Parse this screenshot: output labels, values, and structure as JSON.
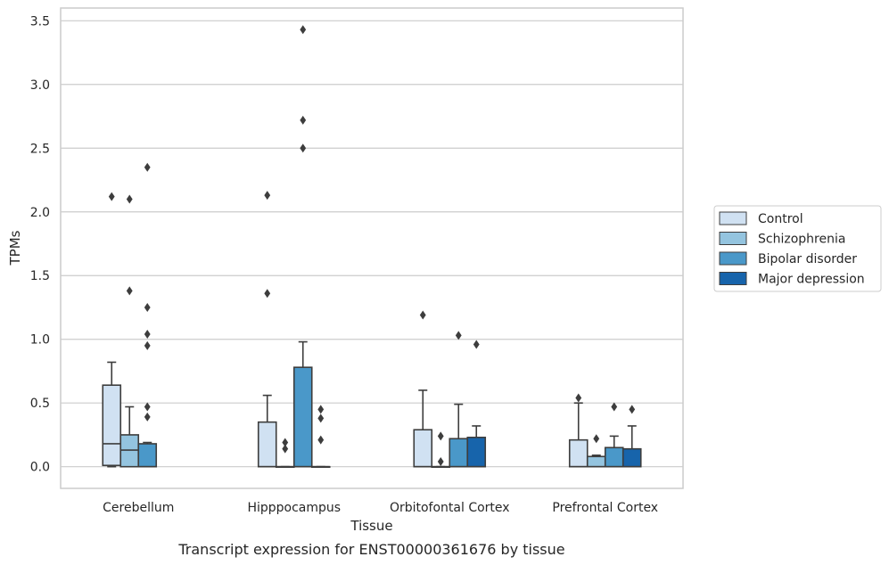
{
  "chart_data": {
    "type": "box",
    "caption": "Transcript expression for ENST00000361676 by tissue",
    "xlabel": "Tissue",
    "ylabel": "TPMs",
    "ylim": [
      -0.17,
      3.6
    ],
    "yticks": [
      0.0,
      0.5,
      1.0,
      1.5,
      2.0,
      2.5,
      3.0,
      3.5
    ],
    "ytick_labels": [
      "0.0",
      "0.5",
      "1.0",
      "1.5",
      "2.0",
      "2.5",
      "3.0",
      "3.5"
    ],
    "grid": "horizontal",
    "legend_position": "right",
    "categories": [
      "Cerebellum",
      "Hipppocampus",
      "Orbitofontal Cortex",
      "Prefrontal Cortex"
    ],
    "series": [
      {
        "name": "Control",
        "color": "#d0e1f2",
        "boxes": [
          {
            "q1": 0.01,
            "median": 0.18,
            "q3": 0.64,
            "whisker_low": 0.0,
            "whisker_high": 0.82,
            "outliers": [
              2.12
            ]
          },
          {
            "q1": 0.0,
            "median": 0.0,
            "q3": 0.35,
            "whisker_low": 0.0,
            "whisker_high": 0.56,
            "outliers": [
              2.13,
              1.36
            ]
          },
          {
            "q1": 0.0,
            "median": 0.0,
            "q3": 0.29,
            "whisker_low": 0.0,
            "whisker_high": 0.6,
            "outliers": [
              1.19
            ]
          },
          {
            "q1": 0.0,
            "median": 0.0,
            "q3": 0.21,
            "whisker_low": 0.0,
            "whisker_high": 0.5,
            "outliers": [
              0.54
            ]
          }
        ]
      },
      {
        "name": "Schizophrenia",
        "color": "#94c4df",
        "boxes": [
          {
            "q1": 0.0,
            "median": 0.13,
            "q3": 0.25,
            "whisker_low": 0.0,
            "whisker_high": 0.47,
            "outliers": [
              2.1,
              1.38
            ]
          },
          {
            "q1": 0.0,
            "median": 0.0,
            "q3": 0.0,
            "whisker_low": 0.0,
            "whisker_high": 0.0,
            "outliers": [
              0.19,
              0.14
            ]
          },
          {
            "q1": 0.0,
            "median": 0.0,
            "q3": 0.0,
            "whisker_low": 0.0,
            "whisker_high": 0.0,
            "outliers": [
              0.24,
              0.04
            ]
          },
          {
            "q1": 0.0,
            "median": 0.0,
            "q3": 0.08,
            "whisker_low": 0.0,
            "whisker_high": 0.09,
            "outliers": [
              0.22
            ]
          }
        ]
      },
      {
        "name": "Bipolar disorder",
        "color": "#4a98c9",
        "boxes": [
          {
            "q1": 0.0,
            "median": 0.0,
            "q3": 0.18,
            "whisker_low": 0.0,
            "whisker_high": 0.19,
            "outliers": [
              2.35,
              1.25,
              1.04,
              0.95,
              0.47,
              0.39
            ]
          },
          {
            "q1": 0.0,
            "median": 0.0,
            "q3": 0.78,
            "whisker_low": 0.0,
            "whisker_high": 0.98,
            "outliers": [
              3.43,
              2.72,
              2.5
            ]
          },
          {
            "q1": 0.0,
            "median": 0.0,
            "q3": 0.22,
            "whisker_low": 0.0,
            "whisker_high": 0.49,
            "outliers": [
              1.03
            ]
          },
          {
            "q1": 0.0,
            "median": 0.0,
            "q3": 0.15,
            "whisker_low": 0.0,
            "whisker_high": 0.24,
            "outliers": [
              0.47
            ]
          }
        ]
      },
      {
        "name": "Major depression",
        "color": "#1764ab",
        "boxes": [
          null,
          {
            "q1": 0.0,
            "median": 0.0,
            "q3": 0.0,
            "whisker_low": 0.0,
            "whisker_high": 0.0,
            "outliers": [
              0.45,
              0.38,
              0.21
            ]
          },
          {
            "q1": 0.0,
            "median": 0.0,
            "q3": 0.23,
            "whisker_low": 0.0,
            "whisker_high": 0.32,
            "outliers": [
              0.96
            ]
          },
          {
            "q1": 0.0,
            "median": 0.0,
            "q3": 0.14,
            "whisker_low": 0.0,
            "whisker_high": 0.32,
            "outliers": [
              0.45
            ]
          }
        ]
      }
    ]
  }
}
